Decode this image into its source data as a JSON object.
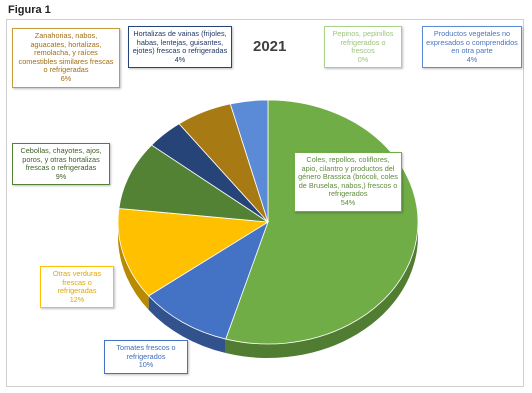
{
  "figure_label": "Figura 1",
  "chart_data": {
    "type": "pie",
    "title": "2021",
    "slices": [
      {
        "label": "Coles, repollos, coliflores, apio, cilantro y productos del género Brassica (brócoli, coles de Bruselas, nabos,) frescos o refrigerados",
        "value": 54,
        "pct_label": "54%",
        "color": "#70ad47",
        "text_color": "#5e8c3a"
      },
      {
        "label": "Tomates frescos o refrigerados",
        "value": 10,
        "pct_label": "10%",
        "color": "#4472c4",
        "text_color": "#3f6cb8"
      },
      {
        "label": "Otras verduras frescas o refrigeradas",
        "value": 12,
        "pct_label": "12%",
        "color": "#ffc000",
        "text_color": "#e0a800"
      },
      {
        "label": "Cebollas, chayotes, ajos, poros, y otras hortalizas frescas o refrigeradas",
        "value": 9,
        "pct_label": "9%",
        "color": "#548235",
        "text_color": "#3e5f28"
      },
      {
        "label": "Hortalizas de vainas (frijoles, habas, lentejas, guisantes, ejotes) frescas o refrigeradas",
        "value": 4,
        "pct_label": "4%",
        "color": "#264478",
        "text_color": "#203864"
      },
      {
        "label": "Zanahorias, nabos, aguacates, hortalizas, remolacha, y raíces comestibles similares frescas o refrigeradas",
        "value": 6,
        "pct_label": "6%",
        "color": "#a87a14",
        "text_color": "#a36d10"
      },
      {
        "label": "Pepinos, pepinillos refrigerados o frescos",
        "value": 0,
        "pct_label": "0%",
        "color": "#a9d18e",
        "text_color": "#9dc47e"
      },
      {
        "label": "Productos vegetales no expresados o comprendidos en otra parte",
        "value": 4,
        "pct_label": "4%",
        "color": "#5b8bd6",
        "text_color": "#4a74c0"
      }
    ]
  }
}
